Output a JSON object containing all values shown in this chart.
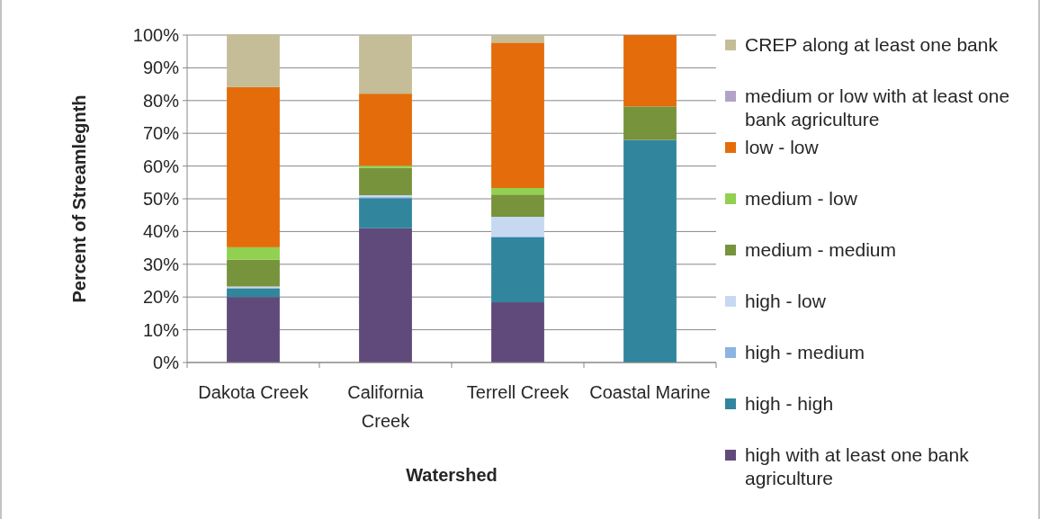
{
  "chart_data": {
    "type": "bar",
    "stacked": true,
    "xlabel": "Watershed",
    "ylabel": "Percent of Streamlegnth",
    "categories": [
      "Dakota Creek",
      "California Creek",
      "Terrell Creek",
      "Coastal Marine"
    ],
    "series": [
      {
        "name": "high with at least one bank agriculture",
        "color": "#604a7b",
        "values": [
          20,
          41,
          18.4,
          0
        ]
      },
      {
        "name": "high - high",
        "color": "#31859c",
        "values": [
          2.7,
          9.2,
          19.9,
          68
        ]
      },
      {
        "name": "high - medium",
        "color": "#8db3e2",
        "values": [
          0,
          0.3,
          0.3,
          0
        ]
      },
      {
        "name": "high - low",
        "color": "#c6d9f1",
        "values": [
          0.5,
          0.6,
          5.9,
          0
        ]
      },
      {
        "name": "medium - medium",
        "color": "#77933c",
        "values": [
          8.2,
          8.3,
          6.8,
          10.2
        ]
      },
      {
        "name": "medium - low",
        "color": "#92d050",
        "values": [
          3.8,
          0.7,
          2,
          0
        ]
      },
      {
        "name": "low - low",
        "color": "#e46c0a",
        "values": [
          48.9,
          22,
          44.4,
          21.8
        ]
      },
      {
        "name": "medium or low with at least one bank agriculture",
        "color": "#b3a2c7",
        "values": [
          0,
          0,
          0,
          0
        ]
      },
      {
        "name": "CREP along at least one bank",
        "color": "#c4bd97",
        "values": [
          16.1,
          17.9,
          2.3,
          0
        ]
      }
    ],
    "ylim": [
      0,
      100
    ],
    "yticks": [
      {
        "value": 0,
        "label": "0%"
      },
      {
        "value": 10,
        "label": "10%"
      },
      {
        "value": 20,
        "label": "20%"
      },
      {
        "value": 30,
        "label": "30%"
      },
      {
        "value": 40,
        "label": "40%"
      },
      {
        "value": 50,
        "label": "50%"
      },
      {
        "value": 60,
        "label": "60%"
      },
      {
        "value": 70,
        "label": "70%"
      },
      {
        "value": 80,
        "label": "80%"
      },
      {
        "value": 90,
        "label": "90%"
      },
      {
        "value": 100,
        "label": "100%"
      }
    ],
    "grid": "y",
    "legend": "right"
  }
}
